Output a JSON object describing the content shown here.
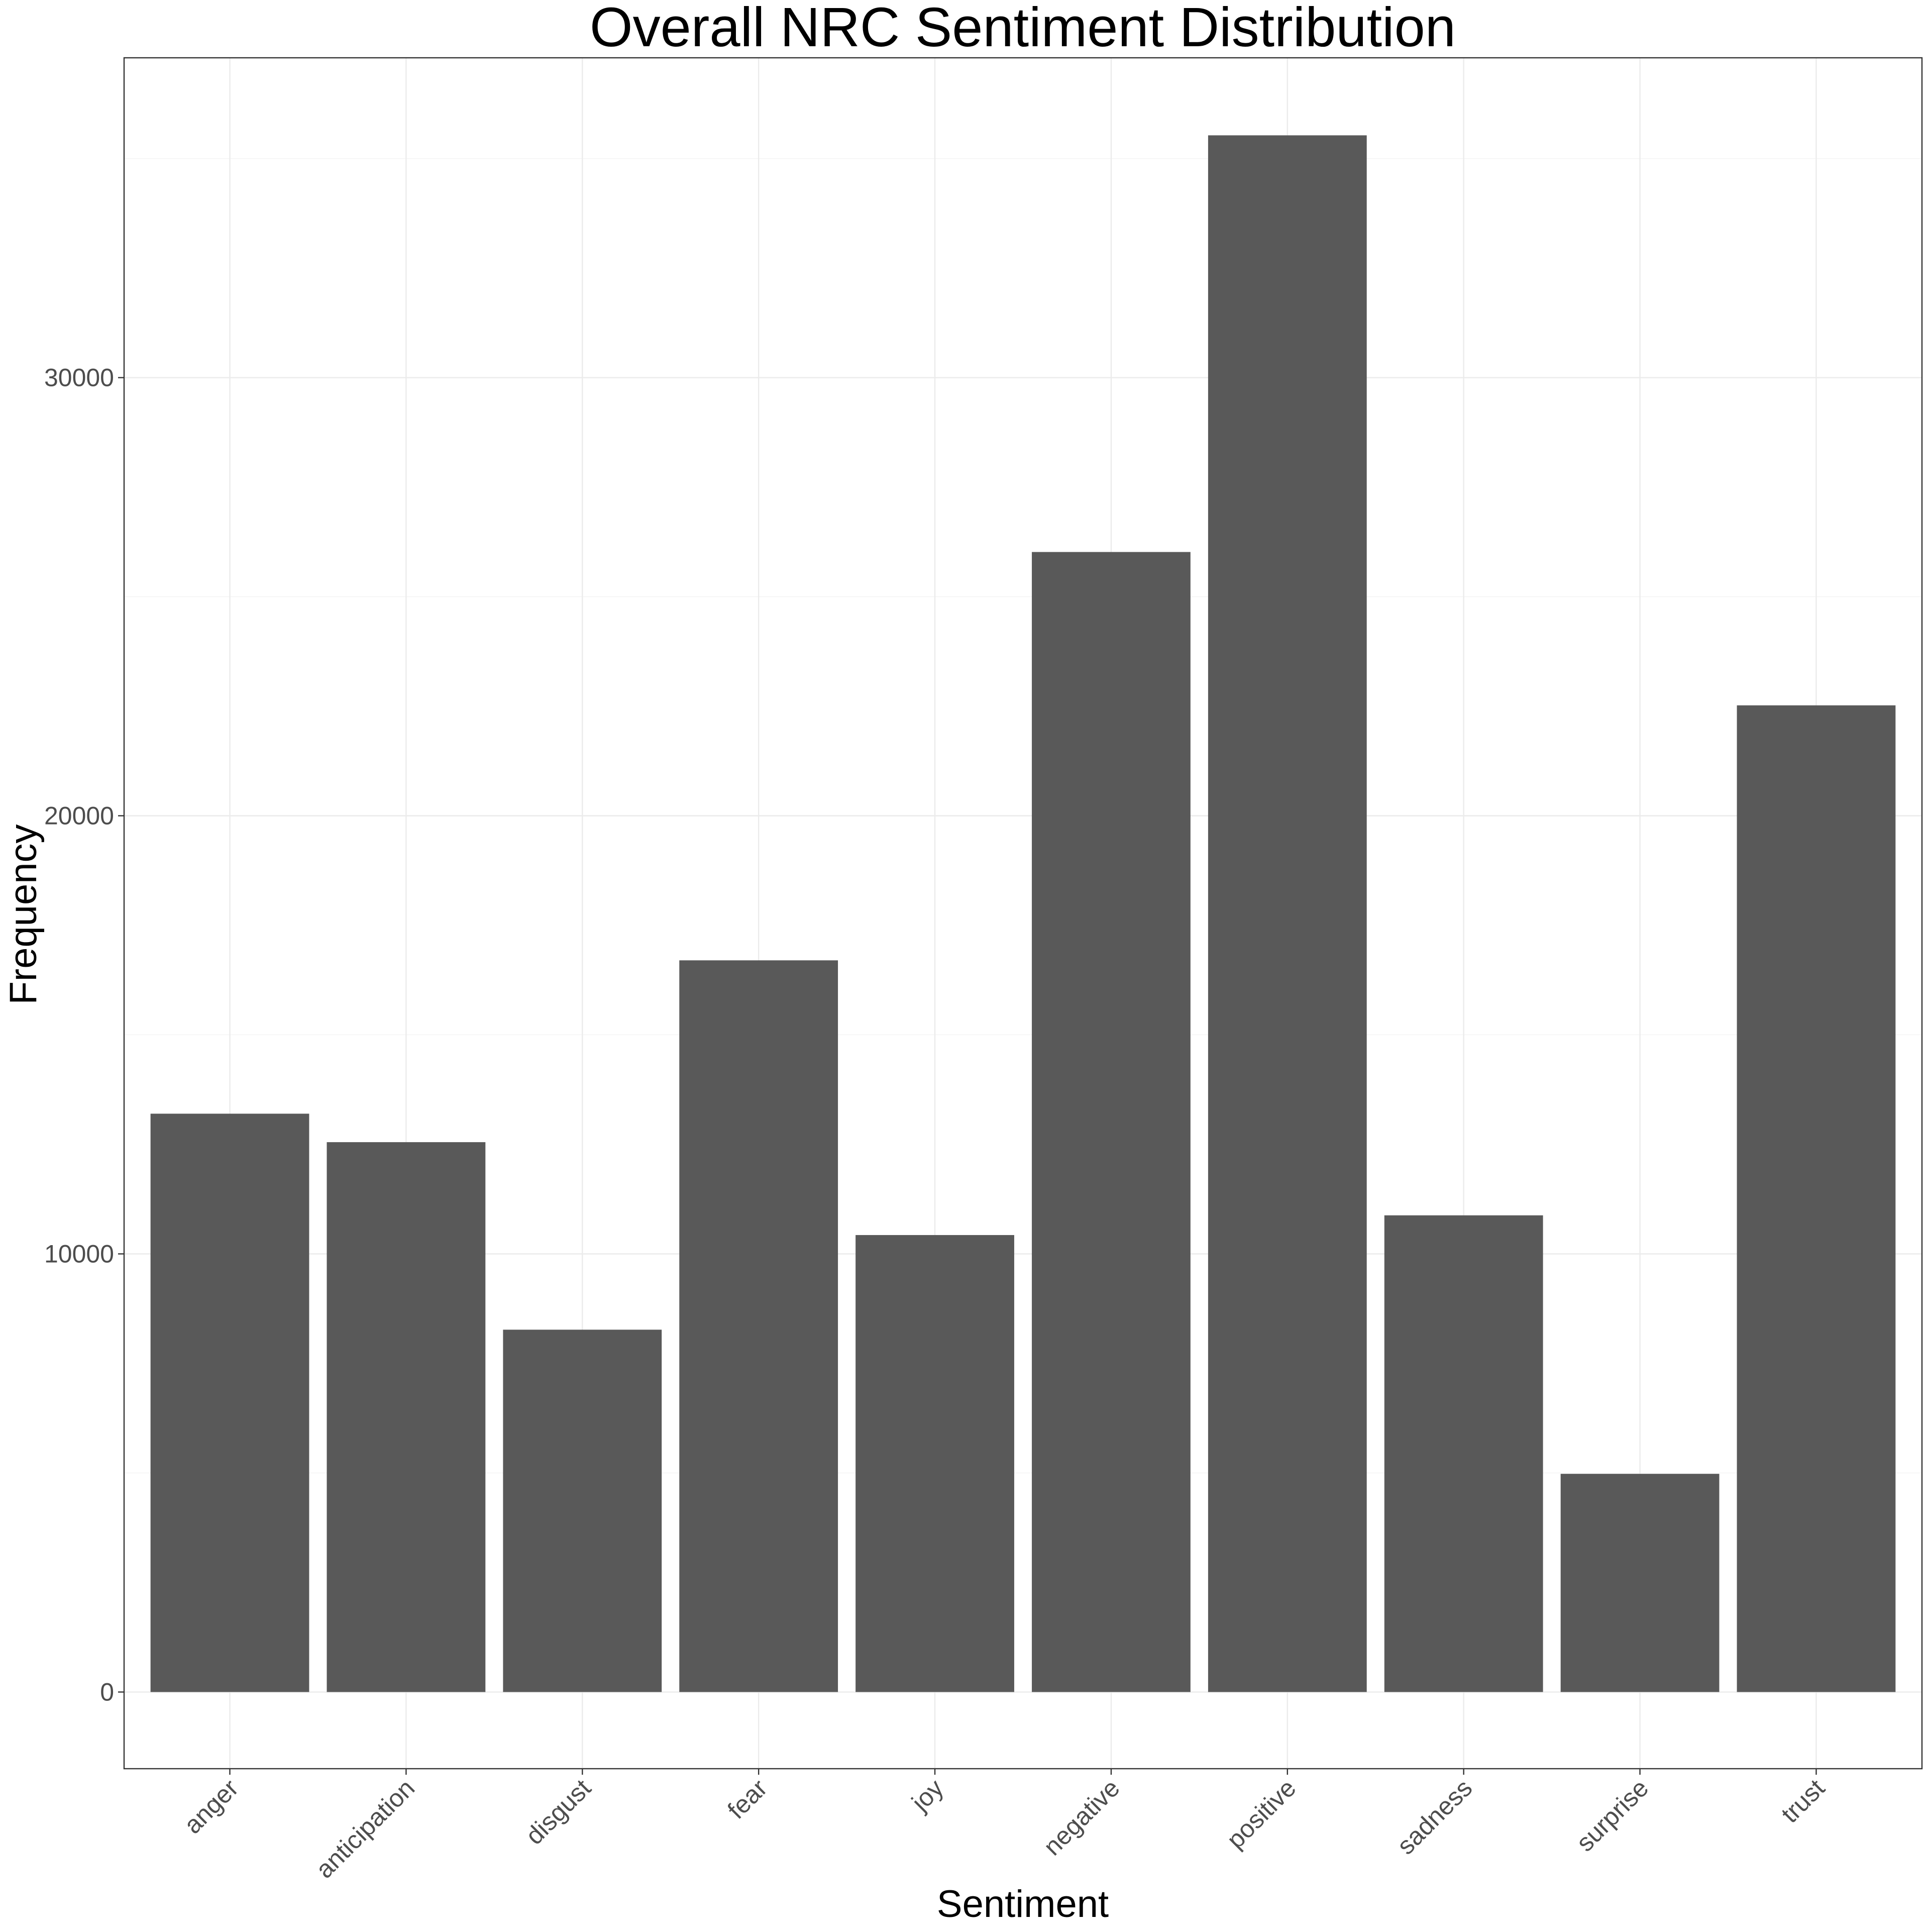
{
  "chart_data": {
    "type": "bar",
    "title": "Overall NRC Sentiment Distribution",
    "xlabel": "Sentiment",
    "ylabel": "Frequency",
    "categories": [
      "anger",
      "anticipation",
      "disgust",
      "fear",
      "joy",
      "negative",
      "positive",
      "sadness",
      "surprise",
      "trust"
    ],
    "values": [
      13200,
      12550,
      8270,
      16700,
      10430,
      26020,
      35530,
      10880,
      4980,
      22520
    ],
    "ylim": [
      -1750,
      37300
    ],
    "yticks": [
      0,
      10000,
      20000,
      30000
    ],
    "ytick_labels": [
      "0",
      "10000",
      "20000",
      "30000"
    ],
    "bar_color": "#595959",
    "grid": true,
    "legend": "none"
  }
}
